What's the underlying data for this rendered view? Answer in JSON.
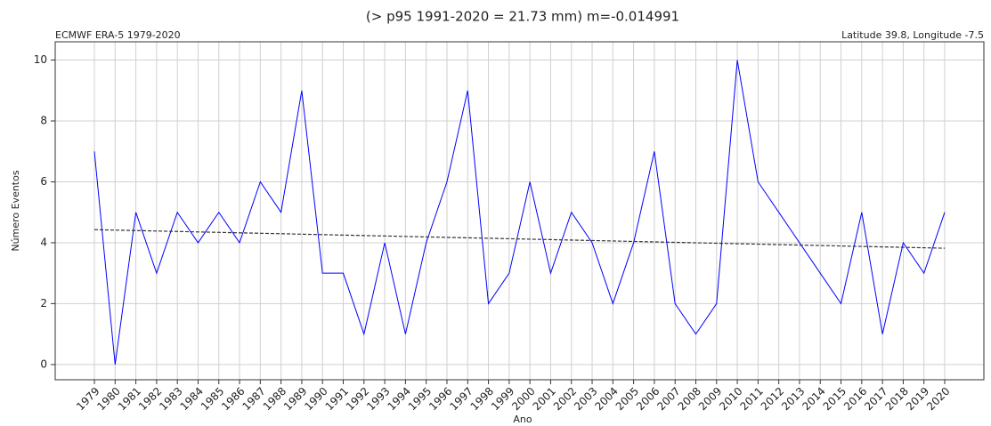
{
  "chart_data": {
    "type": "line",
    "title": "(> p95 1991-2020 = 21.73 mm) m=-0.014991",
    "subtitle_left": "ECMWF ERA-5 1979-2020",
    "subtitle_right": "Latitude 39.8, Longitude -7.5",
    "x_label": "Ano",
    "y_label": "Número Eventos",
    "categories": [
      "1979",
      "1980",
      "1981",
      "1982",
      "1983",
      "1984",
      "1985",
      "1986",
      "1987",
      "1988",
      "1989",
      "1990",
      "1991",
      "1992",
      "1993",
      "1994",
      "1995",
      "1996",
      "1997",
      "1998",
      "1999",
      "2000",
      "2001",
      "2002",
      "2003",
      "2004",
      "2005",
      "2006",
      "2007",
      "2008",
      "2009",
      "2010",
      "2011",
      "2012",
      "2013",
      "2014",
      "2015",
      "2016",
      "2017",
      "2018",
      "2019",
      "2020"
    ],
    "series": [
      {
        "color": "#0000ff",
        "values": [
          7,
          0,
          5,
          3,
          5,
          4,
          5,
          4,
          6,
          5,
          9,
          3,
          3,
          1,
          4,
          1,
          4,
          6,
          9,
          2,
          3,
          6,
          3,
          5,
          4,
          2,
          4,
          7,
          2,
          1,
          2,
          10,
          6,
          5,
          4,
          3,
          2,
          5,
          1,
          4,
          3,
          5
        ]
      }
    ],
    "trend_line": {
      "color": "#333333",
      "values": [
        4.43,
        3.82
      ]
    },
    "ylim": [
      -0.5,
      10.6
    ],
    "yticks": [
      0,
      2,
      4,
      6,
      8,
      10
    ],
    "grid": true
  }
}
